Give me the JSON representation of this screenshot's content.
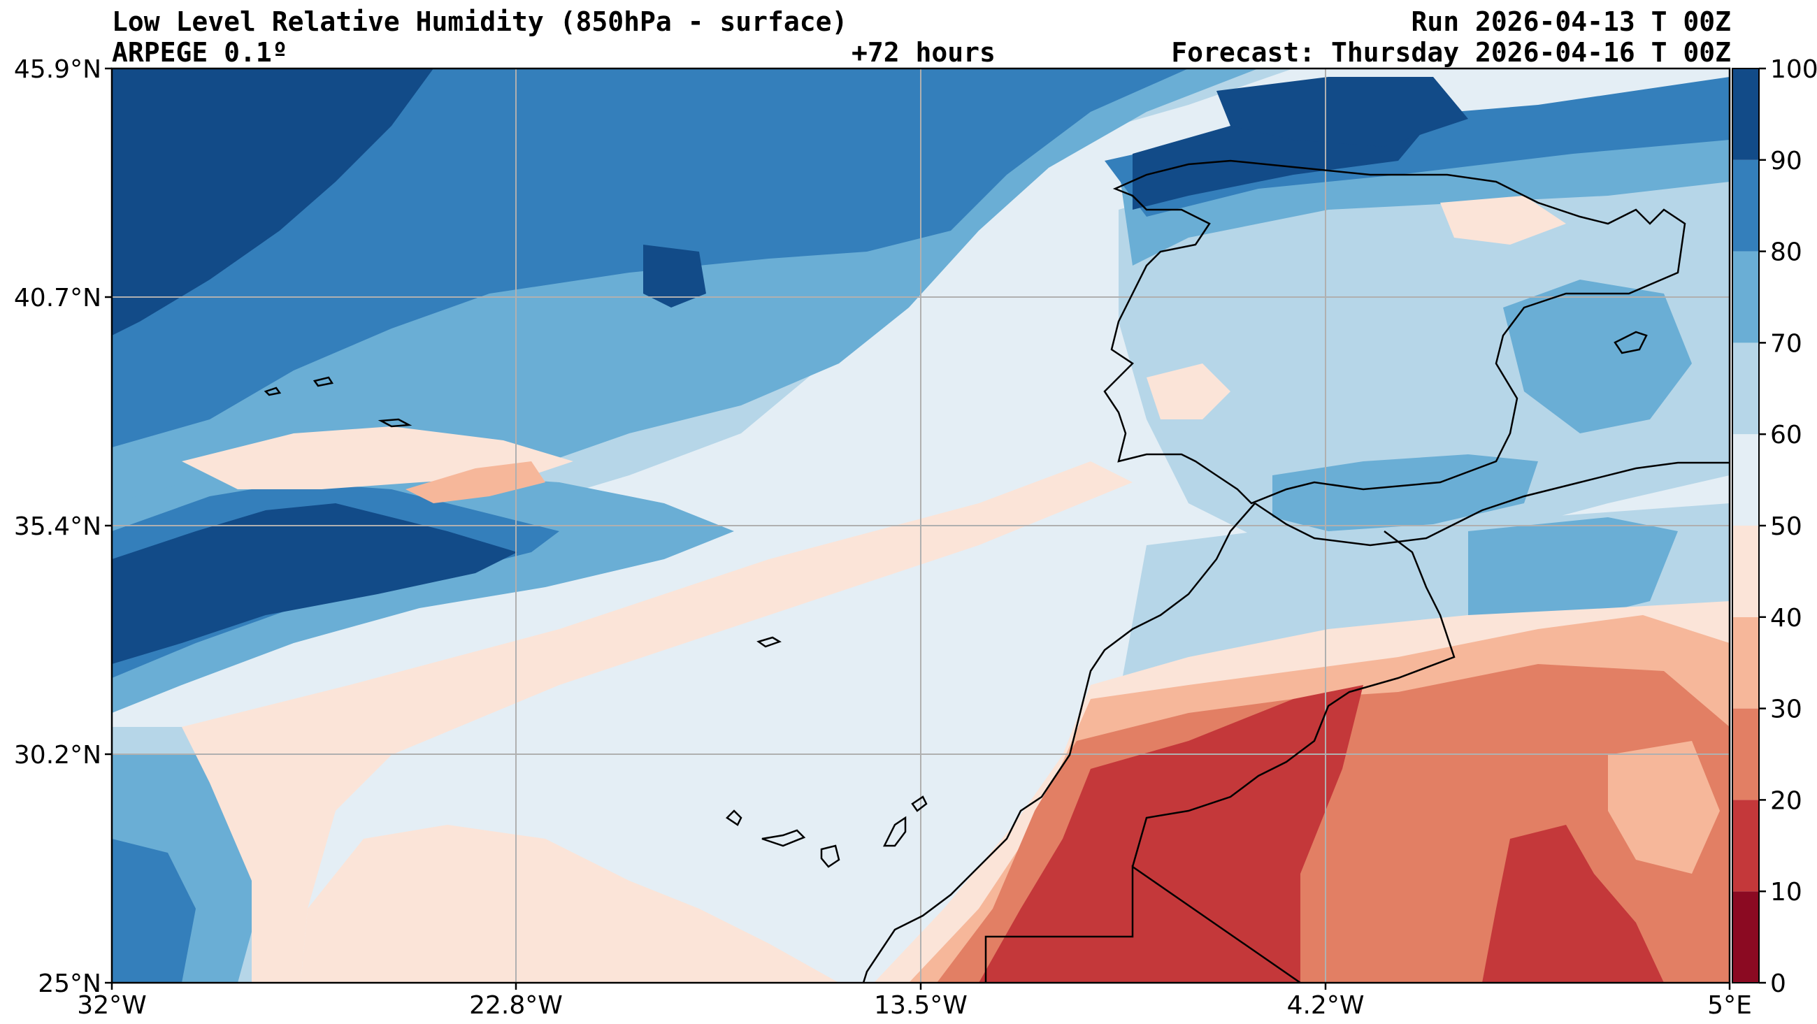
{
  "header": {
    "title": "Low Level Relative Humidity (850hPa - surface)",
    "model": "ARPEGE 0.1º",
    "lead_time": "+72 hours",
    "run": "Run 2026-04-13 T 00Z",
    "forecast": "Forecast: Thursday 2026-04-16 T 00Z"
  },
  "axes": {
    "lat_labels": [
      "45.9°N",
      "40.7°N",
      "35.4°N",
      "30.2°N",
      "25°N"
    ],
    "lon_labels": [
      "32°W",
      "22.8°W",
      "13.5°W",
      "4.2°W",
      "5°E"
    ],
    "lat_range": [
      25,
      45.9
    ],
    "lon_range": [
      -32,
      5
    ]
  },
  "colorbar": {
    "ticks": [
      "0",
      "10",
      "20",
      "30",
      "40",
      "50",
      "60",
      "70",
      "80",
      "90",
      "100"
    ],
    "levels": [
      {
        "min": 0,
        "max": 10,
        "color": "#8b0a22"
      },
      {
        "min": 10,
        "max": 20,
        "color": "#c4383a"
      },
      {
        "min": 20,
        "max": 30,
        "color": "#e27f64"
      },
      {
        "min": 30,
        "max": 40,
        "color": "#f6b79a"
      },
      {
        "min": 40,
        "max": 50,
        "color": "#fbe4d8"
      },
      {
        "min": 50,
        "max": 60,
        "color": "#e4eef5"
      },
      {
        "min": 60,
        "max": 70,
        "color": "#b6d6e8"
      },
      {
        "min": 70,
        "max": 80,
        "color": "#6aaed5"
      },
      {
        "min": 80,
        "max": 90,
        "color": "#347fbb"
      },
      {
        "min": 90,
        "max": 100,
        "color": "#124b88"
      }
    ]
  }
}
